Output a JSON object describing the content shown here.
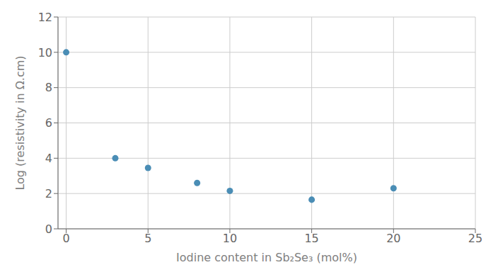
{
  "chart_data": {
    "type": "scatter",
    "x": [
      0,
      3,
      5,
      8,
      10,
      15,
      20
    ],
    "y": [
      10.0,
      4.0,
      3.45,
      2.6,
      2.15,
      1.65,
      2.3
    ],
    "color": "#4a8db5",
    "xlabel": "Iodine content in Sb₂Se₃ (mol%)",
    "ylabel": "Log (resistivity in Ω.cm)",
    "xlim": [
      -0.5,
      25
    ],
    "ylim": [
      0,
      12
    ],
    "xticks": [
      0,
      5,
      10,
      15,
      20,
      25
    ],
    "yticks": [
      0,
      2,
      4,
      6,
      8,
      10,
      12
    ],
    "grid": true
  }
}
